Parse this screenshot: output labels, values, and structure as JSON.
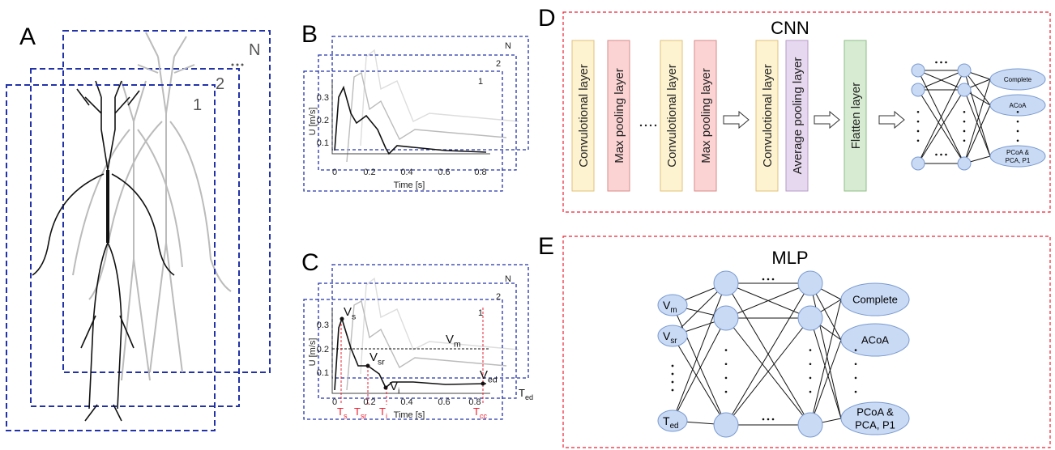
{
  "panel_a": {
    "label": "A",
    "stack_labels": [
      "N",
      "2",
      "1"
    ]
  },
  "panel_b": {
    "label": "B",
    "stack_labels": [
      "N",
      "2",
      "1"
    ],
    "y_axis_label": "U [m/s]",
    "y_ticks": [
      "0.1",
      "0.2",
      "0.3"
    ],
    "x_ticks": [
      "0",
      "0.2",
      "0.4",
      "0.6",
      "0.8"
    ],
    "x_axis_label": "Time [s]"
  },
  "panel_c": {
    "label": "C",
    "stack_labels": [
      "N",
      "2",
      "1"
    ],
    "y_axis_label": "U [m/s]",
    "y_ticks": [
      "0.1",
      "0.2",
      "0.3"
    ],
    "x_ticks": [
      "0",
      "0.2",
      "0.4",
      "0.6",
      "0.8"
    ],
    "x_axis_label": "Time [s]",
    "features": {
      "vs": {
        "base": "V",
        "sub": "s"
      },
      "vsr": {
        "base": "V",
        "sub": "sr"
      },
      "vi": {
        "base": "V",
        "sub": "i"
      },
      "vm": {
        "base": "V",
        "sub": "m"
      },
      "ved": {
        "base": "V",
        "sub": "ed"
      },
      "ted": {
        "base": "T",
        "sub": "ed"
      }
    },
    "times": [
      {
        "base": "T",
        "sub": "s"
      },
      {
        "base": "T",
        "sub": "sr"
      },
      {
        "base": "T",
        "sub": "i"
      },
      {
        "base": "T",
        "sub": "cc"
      }
    ]
  },
  "panel_d": {
    "label": "D",
    "title": "CNN",
    "layers": [
      "Convulotional layer",
      "Max pooling layer",
      "Convulotional layer",
      "Max pooling layer",
      "Convulotional layer",
      "Average pooling layer",
      "Flatten layer"
    ],
    "outputs": [
      [
        "Complete"
      ],
      [
        "ACoA"
      ],
      [
        "PCoA &",
        "PCA, P1"
      ]
    ]
  },
  "panel_e": {
    "label": "E",
    "title": "MLP",
    "inputs": [
      {
        "base": "V",
        "sub": "m"
      },
      {
        "base": "V",
        "sub": "sr"
      },
      {
        "base": "T",
        "sub": "ed"
      }
    ],
    "outputs": [
      [
        "Complete"
      ],
      [
        "ACoA"
      ],
      [
        "PCoA &",
        "PCA, P1"
      ]
    ]
  }
}
